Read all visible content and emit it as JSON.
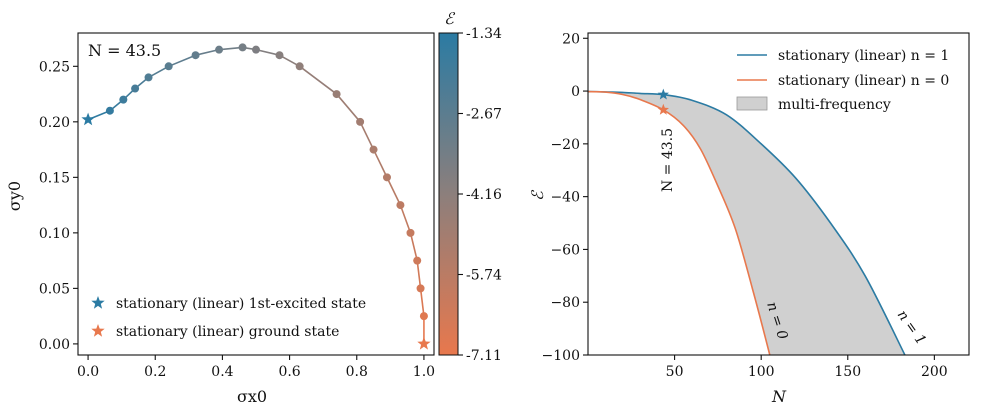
{
  "colors": {
    "excited": "#2b7ba3",
    "ground": "#e8784d",
    "mid": "#8c7f7c",
    "fill": "#d0d0d0"
  },
  "chart_data": [
    {
      "type": "scatter",
      "xlabel": "σx0",
      "ylabel": "σy0",
      "annotation": "N = 43.5",
      "xlim": [
        -0.03,
        1.03
      ],
      "ylim": [
        -0.01,
        0.28
      ],
      "xticks": [
        "0.0",
        "0.2",
        "0.4",
        "0.6",
        "0.8",
        "1.0"
      ],
      "yticks": [
        "0.00",
        "0.05",
        "0.10",
        "0.15",
        "0.20",
        "0.25"
      ],
      "points": [
        {
          "x": 0.0,
          "y": 0.202
        },
        {
          "x": 0.065,
          "y": 0.21
        },
        {
          "x": 0.105,
          "y": 0.22
        },
        {
          "x": 0.14,
          "y": 0.23
        },
        {
          "x": 0.18,
          "y": 0.24
        },
        {
          "x": 0.24,
          "y": 0.25
        },
        {
          "x": 0.32,
          "y": 0.26
        },
        {
          "x": 0.39,
          "y": 0.265
        },
        {
          "x": 0.46,
          "y": 0.267
        },
        {
          "x": 0.5,
          "y": 0.265
        },
        {
          "x": 0.57,
          "y": 0.26
        },
        {
          "x": 0.63,
          "y": 0.25
        },
        {
          "x": 0.74,
          "y": 0.225
        },
        {
          "x": 0.81,
          "y": 0.2
        },
        {
          "x": 0.85,
          "y": 0.175
        },
        {
          "x": 0.89,
          "y": 0.15
        },
        {
          "x": 0.93,
          "y": 0.125
        },
        {
          "x": 0.96,
          "y": 0.1
        },
        {
          "x": 0.98,
          "y": 0.075
        },
        {
          "x": 0.99,
          "y": 0.05
        },
        {
          "x": 1.0,
          "y": 0.025
        },
        {
          "x": 1.0,
          "y": 0.0
        }
      ],
      "legend": [
        {
          "label": "stationary (linear) 1st-excited state",
          "marker": "star",
          "color": "#2b7ba3"
        },
        {
          "label": "stationary (linear) ground state",
          "marker": "star",
          "color": "#e8784d"
        }
      ],
      "colorbar": {
        "label": "ℰ",
        "ticks": [
          "-1.34",
          "-2.67",
          "-4.16",
          "-5.74",
          "-7.11"
        ]
      }
    },
    {
      "type": "line",
      "xlabel": "N",
      "ylabel": "ℰ",
      "xlim": [
        0,
        220
      ],
      "ylim": [
        -100,
        22
      ],
      "xticks": [
        "50",
        "100",
        "150",
        "200"
      ],
      "yticks": [
        "20",
        "0",
        "−20",
        "−40",
        "−60",
        "−80",
        "−100"
      ],
      "series": [
        {
          "name": "stationary (linear) n = 1",
          "color": "#2b7ba3",
          "x": [
            0,
            10,
            20,
            30,
            43.5,
            60,
            80,
            100,
            120,
            140,
            160,
            183
          ],
          "y": [
            -0.2,
            -0.3,
            -0.5,
            -0.9,
            -1.34,
            -3.5,
            -9,
            -20,
            -33,
            -50,
            -70,
            -100
          ]
        },
        {
          "name": "stationary (linear) n = 0",
          "color": "#e8784d",
          "x": [
            0,
            10,
            20,
            30,
            43.5,
            55,
            65,
            75,
            85,
            95,
            105
          ],
          "y": [
            -0.2,
            -0.4,
            -1.3,
            -3.2,
            -7.11,
            -13,
            -22,
            -36,
            -52,
            -75,
            -100
          ]
        }
      ],
      "fill_label": "multi-frequency",
      "annotations": [
        "N = 43.5",
        "n = 0",
        "n = 1"
      ]
    }
  ]
}
